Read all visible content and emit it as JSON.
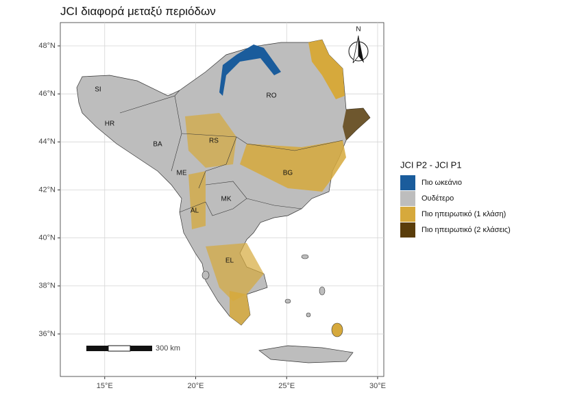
{
  "title": "JCI διαφορά μεταξύ περιόδων",
  "map": {
    "xlim": [
      12.56,
      30.34
    ],
    "ylim": [
      34.23,
      48.97
    ],
    "xticks": [
      {
        "value": 15,
        "label": "15°E"
      },
      {
        "value": 20,
        "label": "20°E"
      },
      {
        "value": 25,
        "label": "25°E"
      },
      {
        "value": 30,
        "label": "30°E"
      }
    ],
    "yticks": [
      {
        "value": 36,
        "label": "36°N"
      },
      {
        "value": 38,
        "label": "38°N"
      },
      {
        "value": 40,
        "label": "40°N"
      },
      {
        "value": 42,
        "label": "42°N"
      },
      {
        "value": 44,
        "label": "44°N"
      },
      {
        "value": 46,
        "label": "46°N"
      },
      {
        "value": 48,
        "label": "48°N"
      }
    ],
    "grid": true
  },
  "countries": [
    "SI",
    "HR",
    "BA",
    "RS",
    "RO",
    "ME",
    "BG",
    "MK",
    "AL",
    "EL"
  ],
  "north": "N",
  "scale_label": "300 km",
  "legend": {
    "title": "JCI P2 - JCI P1",
    "items": [
      {
        "label": "Πιο ωκεάνιο",
        "color": "#1a5c9c"
      },
      {
        "label": "Ουδέτερο",
        "color": "#bdbdbd"
      },
      {
        "label": "Πιο ηπειρωτικό (1 κλάση)",
        "color": "#d6a93c"
      },
      {
        "label": "Πιο ηπειρωτικό (2 κλάσεις)",
        "color": "#5a3d0a"
      }
    ]
  }
}
